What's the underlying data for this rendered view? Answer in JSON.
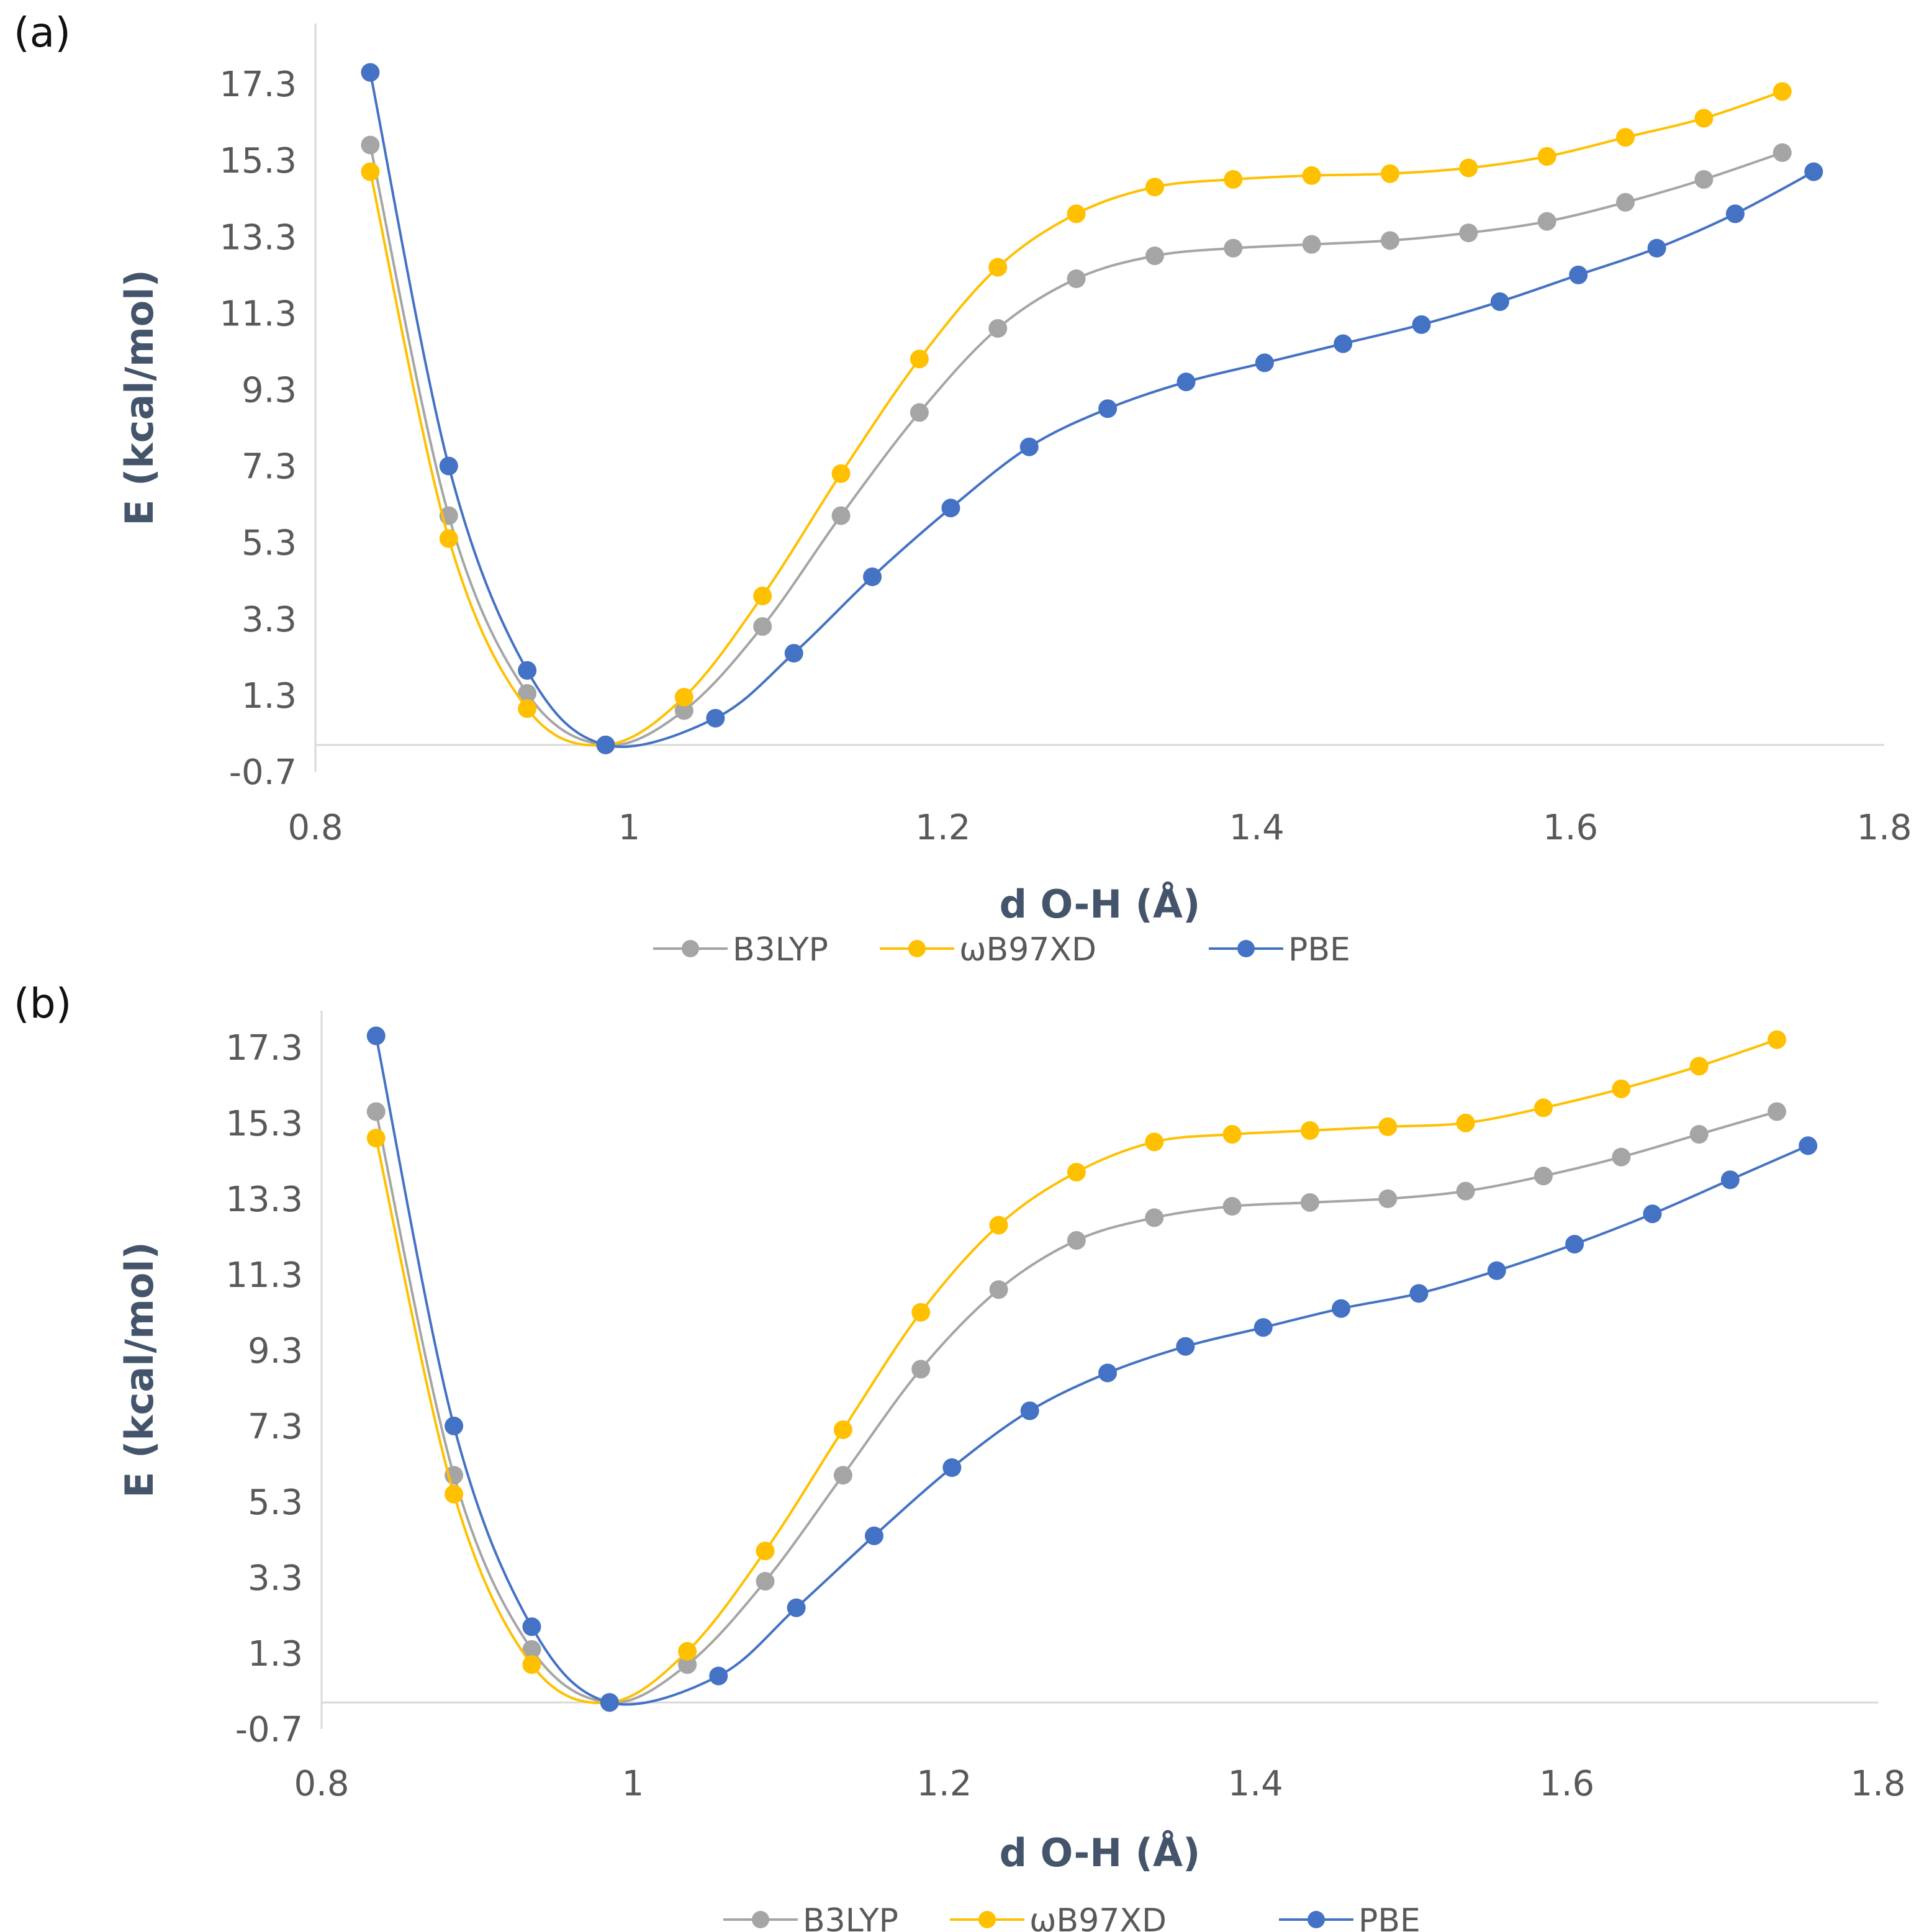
{
  "panels": [
    {
      "label": "(a)"
    },
    {
      "label": "(b)"
    }
  ],
  "chart_data": [
    {
      "type": "line",
      "panel": "(a)",
      "xlabel": "d O-H (Å)",
      "ylabel": "E (kcal/mol)",
      "xlim": [
        0.8,
        1.8
      ],
      "ylim": [
        -0.7,
        18.0
      ],
      "xticks": [
        "0.8",
        "1",
        "1.2",
        "1.4",
        "1.6",
        "1.8"
      ],
      "xtick_values": [
        0.8,
        1.0,
        1.2,
        1.4,
        1.6,
        1.8
      ],
      "yticks": [
        "17.3",
        "15.3",
        "13.3",
        "11.3",
        "9.3",
        "7.3",
        "5.3",
        "3.3",
        "1.3",
        "-0.7"
      ],
      "ytick_values": [
        17.3,
        15.3,
        13.3,
        11.3,
        9.3,
        7.3,
        5.3,
        3.3,
        1.3,
        -0.7
      ],
      "legend_position": "bottom",
      "series": [
        {
          "name": "B3LYP",
          "color": "#a5a5a5",
          "x": [
            0.835,
            0.885,
            0.935,
            0.985,
            1.035,
            1.085,
            1.135,
            1.185,
            1.235,
            1.285,
            1.335,
            1.385,
            1.435,
            1.485,
            1.535,
            1.585,
            1.635,
            1.685,
            1.735
          ],
          "y": [
            15.7,
            6.0,
            1.35,
            0.0,
            0.9,
            3.1,
            6.0,
            8.7,
            10.9,
            12.2,
            12.8,
            13.0,
            13.1,
            13.2,
            13.4,
            13.7,
            14.2,
            14.8,
            15.5
          ]
        },
        {
          "name": "ωB97XD",
          "color": "#ffc000",
          "x": [
            0.835,
            0.885,
            0.935,
            0.985,
            1.035,
            1.085,
            1.135,
            1.185,
            1.235,
            1.285,
            1.335,
            1.385,
            1.435,
            1.485,
            1.535,
            1.585,
            1.635,
            1.685,
            1.735
          ],
          "y": [
            15.0,
            5.4,
            0.95,
            0.0,
            1.25,
            3.9,
            7.1,
            10.1,
            12.5,
            13.9,
            14.6,
            14.8,
            14.9,
            14.95,
            15.1,
            15.4,
            15.9,
            16.4,
            17.1
          ]
        },
        {
          "name": "PBE",
          "color": "#4472c4",
          "x": [
            0.835,
            0.885,
            0.935,
            0.985,
            1.055,
            1.105,
            1.155,
            1.205,
            1.255,
            1.305,
            1.355,
            1.405,
            1.455,
            1.505,
            1.555,
            1.605,
            1.655,
            1.705,
            1.755
          ],
          "y": [
            17.6,
            7.3,
            1.95,
            0.0,
            0.7,
            2.4,
            4.4,
            6.2,
            7.8,
            8.8,
            9.5,
            10.0,
            10.5,
            11.0,
            11.6,
            12.3,
            13.0,
            13.9,
            15.0
          ]
        }
      ]
    },
    {
      "type": "line",
      "panel": "(b)",
      "xlabel": "d O-H (Å)",
      "ylabel": "E (kcal/mol)",
      "xlim": [
        0.8,
        1.8
      ],
      "ylim": [
        -0.7,
        18.1
      ],
      "xticks": [
        "0.8",
        "1",
        "1.2",
        "1.4",
        "1.6",
        "1.8"
      ],
      "xtick_values": [
        0.8,
        1.0,
        1.2,
        1.4,
        1.6,
        1.8
      ],
      "yticks": [
        "17.3",
        "15.3",
        "13.3",
        "11.3",
        "9.3",
        "7.3",
        "5.3",
        "3.3",
        "1.3",
        "-0.7"
      ],
      "ytick_values": [
        17.3,
        15.3,
        13.3,
        11.3,
        9.3,
        7.3,
        5.3,
        3.3,
        1.3,
        -0.7
      ],
      "legend_position": "bottom",
      "series": [
        {
          "name": "B3LYP",
          "color": "#a5a5a5",
          "x": [
            0.835,
            0.885,
            0.935,
            0.985,
            1.035,
            1.085,
            1.135,
            1.185,
            1.235,
            1.285,
            1.335,
            1.385,
            1.435,
            1.485,
            1.535,
            1.585,
            1.635,
            1.685,
            1.735
          ],
          "y": [
            15.6,
            6.0,
            1.4,
            0.0,
            1.0,
            3.2,
            6.0,
            8.8,
            10.9,
            12.2,
            12.8,
            13.1,
            13.2,
            13.3,
            13.5,
            13.9,
            14.4,
            15.0,
            15.6
          ]
        },
        {
          "name": "ωB97XD",
          "color": "#ffc000",
          "x": [
            0.835,
            0.885,
            0.935,
            0.985,
            1.035,
            1.085,
            1.135,
            1.185,
            1.235,
            1.285,
            1.335,
            1.385,
            1.435,
            1.485,
            1.535,
            1.585,
            1.635,
            1.685,
            1.735
          ],
          "y": [
            14.9,
            5.5,
            1.0,
            0.0,
            1.35,
            4.0,
            7.2,
            10.3,
            12.6,
            14.0,
            14.8,
            15.0,
            15.1,
            15.2,
            15.3,
            15.7,
            16.2,
            16.8,
            17.5
          ]
        },
        {
          "name": "PBE",
          "color": "#4472c4",
          "x": [
            0.835,
            0.885,
            0.935,
            0.985,
            1.055,
            1.105,
            1.155,
            1.205,
            1.255,
            1.305,
            1.355,
            1.405,
            1.455,
            1.505,
            1.555,
            1.605,
            1.655,
            1.705,
            1.755
          ],
          "y": [
            17.6,
            7.3,
            2.0,
            0.0,
            0.7,
            2.5,
            4.4,
            6.2,
            7.7,
            8.7,
            9.4,
            9.9,
            10.4,
            10.8,
            11.4,
            12.1,
            12.9,
            13.8,
            14.7
          ]
        }
      ]
    }
  ]
}
